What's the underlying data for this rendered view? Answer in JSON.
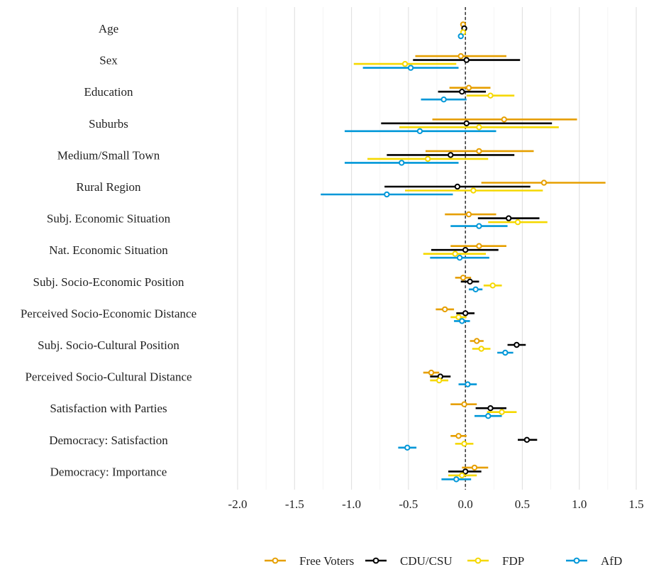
{
  "chart_data": {
    "type": "coefficient-plot",
    "title": "",
    "xlabel": "",
    "ylabel": "",
    "xlim": [
      -2.0,
      1.5
    ],
    "xticks": [
      "-2.0",
      "-1.5",
      "-1.0",
      "-0.5",
      "0.0",
      "0.5",
      "1.0",
      "1.5"
    ],
    "grid": true,
    "reference_line": 0,
    "legend_position": "bottom",
    "categories": [
      "Age",
      "Sex",
      "Education",
      "Suburbs",
      "Medium/Small Town",
      "Rural Region",
      "Subj. Economic Situation",
      "Nat. Economic Situation",
      "Subj. Socio-Economic Position",
      "Perceived Socio-Economic Distance",
      "Subj. Socio-Cultural Position",
      "Perceived Socio-Cultural Distance",
      "Satisfaction with Parties",
      "Democracy: Satisfaction",
      "Democracy: Importance"
    ],
    "series": [
      {
        "name": "Free Voters",
        "color": "#E69F00",
        "estimates": [
          -0.02,
          -0.04,
          0.03,
          0.34,
          0.12,
          0.69,
          0.03,
          0.12,
          -0.02,
          -0.18,
          0.1,
          -0.3,
          -0.01,
          -0.06,
          0.08
        ],
        "lower": [
          -0.03,
          -0.44,
          -0.14,
          -0.29,
          -0.35,
          0.14,
          -0.18,
          -0.13,
          -0.09,
          -0.26,
          0.04,
          -0.37,
          -0.13,
          -0.13,
          -0.03
        ],
        "upper": [
          -0.01,
          0.36,
          0.22,
          0.98,
          0.6,
          1.23,
          0.27,
          0.36,
          0.05,
          -0.1,
          0.16,
          -0.23,
          0.1,
          0.01,
          0.2
        ]
      },
      {
        "name": "CDU/CSU",
        "color": "#000000",
        "estimates": [
          -0.01,
          0.01,
          -0.03,
          0.01,
          -0.13,
          -0.07,
          0.38,
          0.0,
          0.04,
          0.0,
          0.45,
          -0.22,
          0.22,
          0.54,
          0.0
        ],
        "lower": [
          -0.02,
          -0.46,
          -0.24,
          -0.74,
          -0.69,
          -0.71,
          0.11,
          -0.3,
          -0.04,
          -0.08,
          0.37,
          -0.31,
          0.09,
          0.46,
          -0.15
        ],
        "upper": [
          0.0,
          0.48,
          0.18,
          0.76,
          0.43,
          0.57,
          0.65,
          0.29,
          0.12,
          0.08,
          0.53,
          -0.13,
          0.36,
          0.63,
          0.14
        ]
      },
      {
        "name": "FDP",
        "color": "#F5D800",
        "estimates": [
          -0.02,
          -0.53,
          0.22,
          0.12,
          -0.33,
          0.07,
          0.46,
          -0.09,
          0.24,
          -0.06,
          0.14,
          -0.23,
          0.32,
          -0.01,
          -0.03
        ],
        "lower": [
          -0.03,
          -0.98,
          0.01,
          -0.58,
          -0.86,
          -0.53,
          0.2,
          -0.37,
          0.16,
          -0.13,
          0.06,
          -0.31,
          0.19,
          -0.09,
          -0.15
        ],
        "upper": [
          -0.01,
          -0.08,
          0.43,
          0.82,
          0.2,
          0.68,
          0.72,
          0.18,
          0.32,
          0.01,
          0.22,
          -0.15,
          0.45,
          0.07,
          0.1
        ]
      },
      {
        "name": "AfD",
        "color": "#0097D8",
        "estimates": [
          -0.04,
          -0.48,
          -0.19,
          -0.4,
          -0.56,
          -0.69,
          0.12,
          -0.05,
          0.09,
          -0.03,
          0.35,
          0.02,
          0.2,
          -0.51,
          -0.08
        ],
        "lower": [
          -0.05,
          -0.9,
          -0.39,
          -1.06,
          -1.06,
          -1.27,
          -0.13,
          -0.31,
          0.03,
          -0.1,
          0.28,
          -0.06,
          0.08,
          -0.59,
          -0.21
        ],
        "upper": [
          -0.03,
          -0.06,
          0.01,
          0.27,
          -0.06,
          -0.11,
          0.37,
          0.21,
          0.15,
          0.04,
          0.42,
          0.1,
          0.32,
          -0.43,
          0.05
        ]
      }
    ]
  }
}
